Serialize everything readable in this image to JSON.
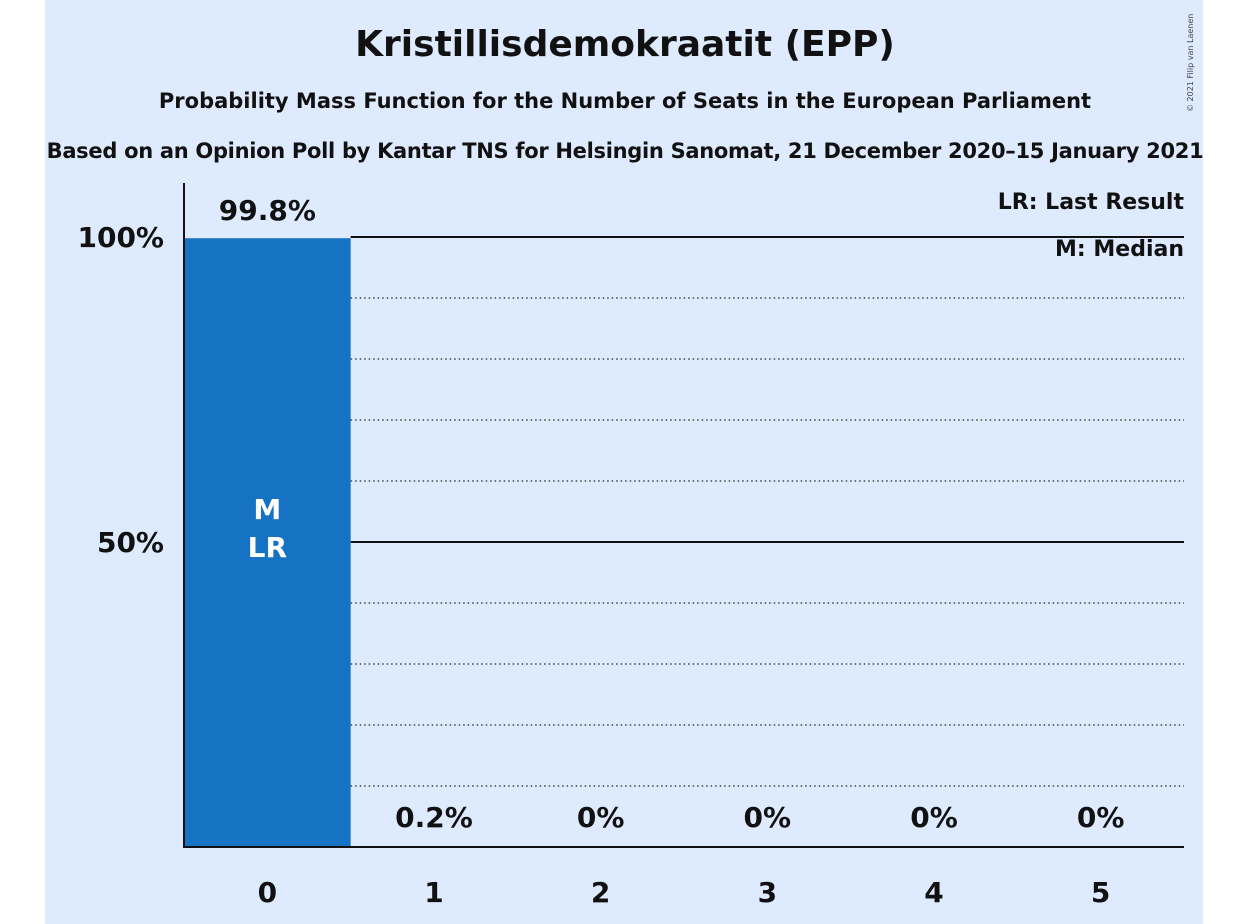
{
  "chart_data": {
    "type": "bar",
    "title": "Kristillisdemokraatit (EPP)",
    "subtitle": "Probability Mass Function for the Number of Seats in the European Parliament",
    "subtitle2": "Based on an Opinion Poll by Kantar TNS for Helsingin Sanomat, 21 December 2020–15 January 2021",
    "copyright": "© 2021 Filip van Laenen",
    "categories": [
      "0",
      "1",
      "2",
      "3",
      "4",
      "5"
    ],
    "values": [
      99.8,
      0.2,
      0,
      0,
      0,
      0
    ],
    "value_labels": [
      "99.8%",
      "0.2%",
      "0%",
      "0%",
      "0%",
      "0%"
    ],
    "ylim": [
      0,
      100
    ],
    "yticks": [
      {
        "value": 50,
        "label": "50%"
      },
      {
        "value": 100,
        "label": "100%"
      }
    ],
    "grid": true,
    "bar_color": "#1673c3",
    "bar_annotations": [
      {
        "category": "0",
        "lines": [
          "M",
          "LR"
        ]
      }
    ],
    "legend": {
      "placement": "top-right",
      "entries": [
        "LR: Last Result",
        "M: Median"
      ]
    }
  }
}
